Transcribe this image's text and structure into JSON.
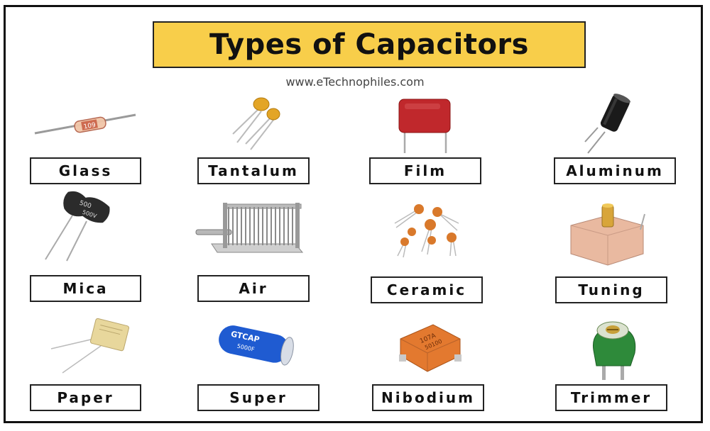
{
  "title": "Types of Capacitors",
  "subtitle": "www.eTechnophiles.com",
  "labels": {
    "glass": "Glass",
    "tantalum": "Tantalum",
    "film": "Film",
    "aluminum": "Aluminum",
    "mica": "Mica",
    "air": "Air",
    "ceramic": "Ceramic",
    "tuning": "Tuning",
    "paper": "Paper",
    "super": "Super",
    "nibodium": "Nibodium",
    "trimmer": "Trimmer"
  },
  "component_text": {
    "glass": "109",
    "mica": "500",
    "mica_voltage": "500V",
    "super_brand": "GTCAP",
    "super_value": "5000F",
    "nibodium": "107A",
    "nibodium_code": "50100"
  },
  "colors": {
    "title_bg": "#f8ce4a",
    "border": "#222222",
    "film_body": "#c0282c",
    "tantalum_body": "#e3a526",
    "aluminum_body": "#1a1a1a",
    "mica_body": "#2b2b2b",
    "ceramic_body": "#d9792b",
    "tuning_body": "#e9b9a0",
    "paper_body": "#e8d79c",
    "super_body": "#1f5bd1",
    "nibodium_body": "#e3792f",
    "trimmer_body": "#2e8a3a"
  }
}
